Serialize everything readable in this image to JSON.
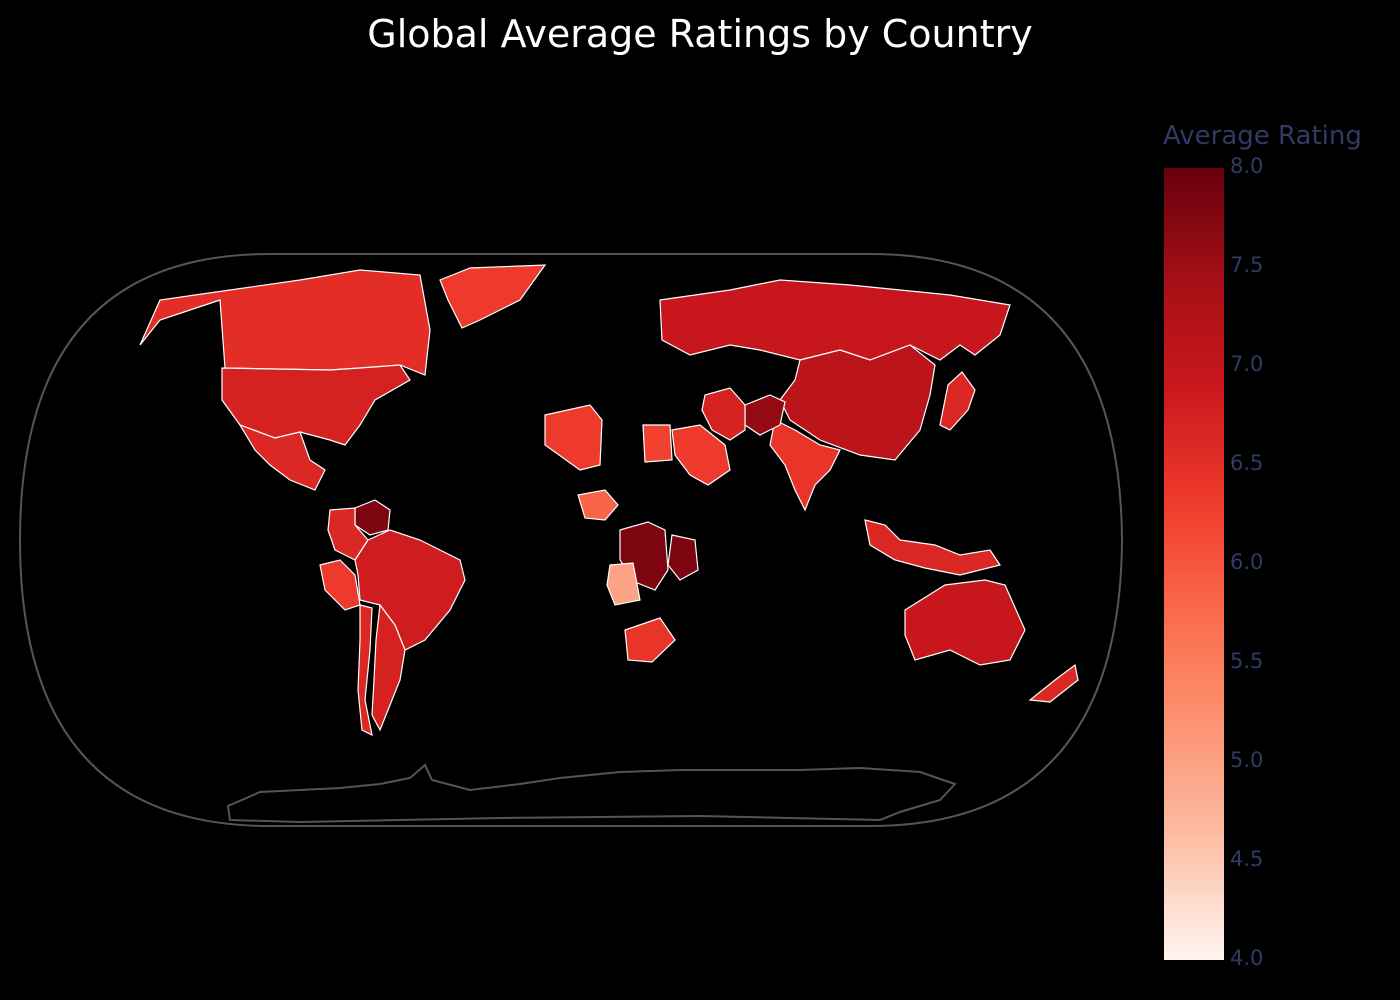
{
  "title": "Global Average Ratings by Country",
  "colorbar": {
    "title": "Average Rating",
    "min": 4.0,
    "max": 8.0,
    "ticks": [
      "8.0",
      "7.5",
      "7.0",
      "6.5",
      "6.0",
      "5.5",
      "5.0",
      "4.5",
      "4.0"
    ],
    "colorscale": [
      "#fff5f0",
      "#fcbba1",
      "#fc9272",
      "#fb6a4a",
      "#ef3b2c",
      "#cb181d",
      "#a50f15",
      "#67000d"
    ]
  },
  "colors": {
    "background": "#000000",
    "no_data": "#000000",
    "border": "#ffffff",
    "frame": "#555555"
  },
  "chart_data": {
    "type": "choropleth",
    "projection": "natural earth",
    "regions": [
      {
        "name": "Canada",
        "value": 6.5
      },
      {
        "name": "United States",
        "value": 6.7
      },
      {
        "name": "Greenland",
        "value": 6.3
      },
      {
        "name": "Mexico",
        "value": 6.6
      },
      {
        "name": "Venezuela",
        "value": 7.8
      },
      {
        "name": "Colombia",
        "value": 6.6
      },
      {
        "name": "Peru",
        "value": 6.3
      },
      {
        "name": "Brazil",
        "value": 6.8
      },
      {
        "name": "Argentina",
        "value": 6.7
      },
      {
        "name": "Chile",
        "value": 6.6
      },
      {
        "name": "Russia",
        "value": 6.9
      },
      {
        "name": "China",
        "value": 7.1
      },
      {
        "name": "India",
        "value": 6.4
      },
      {
        "name": "Afghanistan",
        "value": 7.6
      },
      {
        "name": "Iran",
        "value": 6.7
      },
      {
        "name": "Saudi Arabia",
        "value": 6.3
      },
      {
        "name": "Egypt",
        "value": 6.2
      },
      {
        "name": "Algeria",
        "value": 6.3
      },
      {
        "name": "Nigeria",
        "value": 5.8
      },
      {
        "name": "DR Congo",
        "value": 7.8
      },
      {
        "name": "Tanzania",
        "value": 7.8
      },
      {
        "name": "Angola",
        "value": 4.9
      },
      {
        "name": "South Africa",
        "value": 6.4
      },
      {
        "name": "Australia",
        "value": 6.9
      },
      {
        "name": "New Zealand",
        "value": 6.6
      },
      {
        "name": "Japan",
        "value": 6.6
      },
      {
        "name": "Indonesia",
        "value": 6.6
      }
    ]
  }
}
